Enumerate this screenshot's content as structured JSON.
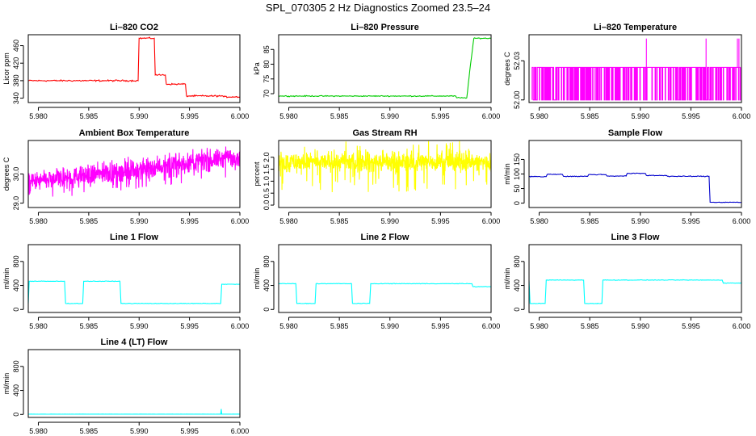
{
  "suptitle": "SPL_070305  2 Hz Diagnostics Zoomed 23.5–24",
  "chart_data": [
    {
      "type": "line",
      "title": "Li–820 CO2",
      "ylabel": "Licor ppm",
      "color": "#ff0000",
      "xlim": [
        5.979,
        6.0
      ],
      "ylim": [
        330,
        485
      ],
      "xticks": [
        "5.980",
        "5.985",
        "5.990",
        "5.995",
        "6.000"
      ],
      "yticks": [
        "340",
        "380",
        "420",
        "460"
      ],
      "noise": 1.5,
      "series": [
        {
          "x": [
            5.979,
            5.9899,
            5.99,
            5.9915,
            5.9916,
            5.9926,
            5.9927,
            5.9946,
            5.9947,
            5.9983,
            5.9984,
            6.0
          ],
          "values": [
            380,
            380,
            477,
            477,
            393,
            393,
            372,
            372,
            345,
            345,
            343,
            343
          ]
        }
      ]
    },
    {
      "type": "line",
      "title": "Li–820 Pressure",
      "ylabel": "kPa",
      "color": "#00cc00",
      "xlim": [
        5.979,
        6.0
      ],
      "ylim": [
        67,
        90
      ],
      "xticks": [
        "5.980",
        "5.985",
        "5.990",
        "5.995",
        "6.000"
      ],
      "yticks": [
        "70",
        "75",
        "80",
        "85"
      ],
      "noise": 0.15,
      "series": [
        {
          "x": [
            5.979,
            5.9965,
            5.9966,
            5.9976,
            5.9979,
            5.9983,
            6.0
          ],
          "values": [
            69.2,
            69.2,
            68.6,
            68.6,
            78,
            88.8,
            88.8
          ]
        }
      ]
    },
    {
      "type": "line",
      "title": "Li–820 Temperature",
      "ylabel": "degrees C",
      "color": "#ff00ff",
      "xlim": [
        5.979,
        6.0
      ],
      "ylim": [
        51.998,
        52.05
      ],
      "xticks": [
        "5.980",
        "5.985",
        "5.990",
        "5.995",
        "6.000"
      ],
      "yticks": [
        "52.00",
        "52.03"
      ],
      "noise": 0,
      "render": "toggle",
      "low": 52.0,
      "high": 52.025,
      "spike": 52.047,
      "series": [
        {
          "x": [
            5.979,
            6.0
          ],
          "values": [
            52.0,
            52.025
          ]
        }
      ]
    },
    {
      "type": "line",
      "title": "Ambient Box Temperature",
      "ylabel": "degrees C",
      "color": "#ff00ff",
      "xlim": [
        5.979,
        6.0
      ],
      "ylim": [
        28.85,
        31.15
      ],
      "xticks": [
        "5.980",
        "5.985",
        "5.990",
        "5.995",
        "6.000"
      ],
      "yticks": [
        "29.0",
        "30.0"
      ],
      "noise": 0.3,
      "render": "dense",
      "extreme": 0.7,
      "series": [
        {
          "x": [
            5.979,
            6.0
          ],
          "values": [
            29.7,
            30.6
          ]
        }
      ]
    },
    {
      "type": "line",
      "title": "Gas Stream RH",
      "ylabel": "percent",
      "color": "#ffff00",
      "xlim": [
        5.979,
        6.0
      ],
      "ylim": [
        -0.1,
        2.7
      ],
      "xticks": [
        "5.980",
        "5.985",
        "5.990",
        "5.995",
        "6.000"
      ],
      "yticks": [
        "0.0",
        "0.5",
        "1.0",
        "1.5",
        "2.0"
      ],
      "noise": 0.35,
      "render": "dense",
      "extreme": 1.3,
      "series": [
        {
          "x": [
            5.979,
            6.0
          ],
          "values": [
            1.8,
            1.8
          ]
        }
      ]
    },
    {
      "type": "line",
      "title": "Sample Flow",
      "ylabel": "ml/min",
      "color": "#0000cc",
      "xlim": [
        5.979,
        6.0
      ],
      "ylim": [
        -15,
        215
      ],
      "xticks": [
        "5.980",
        "5.985",
        "5.990",
        "5.995",
        "6.000"
      ],
      "yticks": [
        "0",
        "50",
        "100",
        "150"
      ],
      "noise": 1.2,
      "series": [
        {
          "x": [
            5.979,
            5.9807,
            5.9808,
            5.9823,
            5.9824,
            5.9848,
            5.9849,
            5.9866,
            5.9867,
            5.9886,
            5.9887,
            5.9905,
            5.9906,
            5.9926,
            5.9927,
            5.9968,
            5.9969,
            6.0
          ],
          "values": [
            91,
            91,
            99,
            99,
            92,
            92,
            98,
            98,
            93,
            93,
            102,
            102,
            95,
            95,
            92,
            92,
            3,
            3
          ]
        }
      ]
    },
    {
      "type": "line",
      "title": "Line 1 Flow",
      "ylabel": "ml/min",
      "color": "#00ffff",
      "xlim": [
        5.979,
        6.0
      ],
      "ylim": [
        -50,
        1080
      ],
      "xticks": [
        "5.980",
        "5.985",
        "5.990",
        "5.995",
        "6.000"
      ],
      "yticks": [
        "0",
        "400",
        "800"
      ],
      "noise": 4,
      "series": [
        {
          "x": [
            5.979,
            5.9791,
            5.9826,
            5.9827,
            5.9844,
            5.9845,
            5.9881,
            5.9882,
            5.9981,
            5.9982,
            6.0
          ],
          "values": [
            100,
            470,
            470,
            100,
            100,
            470,
            470,
            100,
            100,
            420,
            420
          ]
        }
      ]
    },
    {
      "type": "line",
      "title": "Line 2 Flow",
      "ylabel": "ml/min",
      "color": "#00ffff",
      "xlim": [
        5.979,
        6.0
      ],
      "ylim": [
        -50,
        1080
      ],
      "xticks": [
        "5.980",
        "5.985",
        "5.990",
        "5.995",
        "6.000"
      ],
      "yticks": [
        "0",
        "400",
        "800"
      ],
      "noise": 4,
      "series": [
        {
          "x": [
            5.979,
            5.9807,
            5.9808,
            5.9826,
            5.9827,
            5.9862,
            5.9863,
            5.988,
            5.9881,
            5.9981,
            5.9982,
            6.0
          ],
          "values": [
            430,
            430,
            100,
            100,
            430,
            430,
            100,
            100,
            430,
            430,
            380,
            380
          ]
        }
      ]
    },
    {
      "type": "line",
      "title": "Line 3 Flow",
      "ylabel": "ml/min",
      "color": "#00ffff",
      "xlim": [
        5.979,
        6.0
      ],
      "ylim": [
        -50,
        1080
      ],
      "xticks": [
        "5.980",
        "5.985",
        "5.990",
        "5.995",
        "6.000"
      ],
      "yticks": [
        "0",
        "400",
        "800"
      ],
      "noise": 4,
      "series": [
        {
          "x": [
            5.979,
            5.9791,
            5.9806,
            5.9807,
            5.9844,
            5.9845,
            5.9862,
            5.9863,
            5.9981,
            5.9982,
            6.0
          ],
          "values": [
            480,
            100,
            100,
            490,
            490,
            100,
            100,
            490,
            490,
            440,
            440
          ]
        }
      ]
    },
    {
      "type": "line",
      "title": "Line 4 (LT) Flow",
      "ylabel": "ml/min",
      "color": "#00ffff",
      "xlim": [
        5.979,
        6.0
      ],
      "ylim": [
        -50,
        1080
      ],
      "xticks": [
        "5.980",
        "5.985",
        "5.990",
        "5.995",
        "6.000"
      ],
      "yticks": [
        "0",
        "400",
        "800"
      ],
      "noise": 1,
      "series": [
        {
          "x": [
            5.979,
            5.9981,
            5.99815,
            5.9982,
            6.0
          ],
          "values": [
            5,
            5,
            90,
            5,
            5
          ]
        }
      ]
    }
  ]
}
